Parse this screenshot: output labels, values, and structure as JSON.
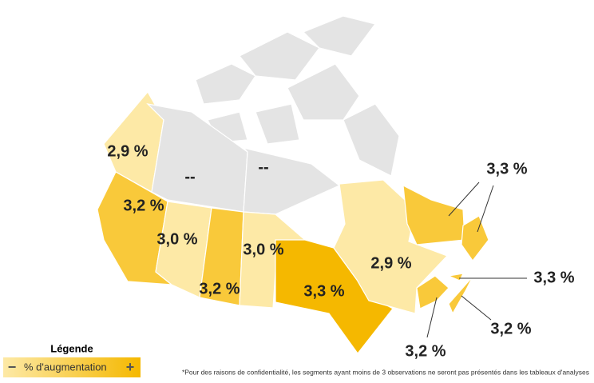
{
  "legend": {
    "title": "Légende",
    "label": "% d'augmentation",
    "minus": "−",
    "plus": "+"
  },
  "regions": [
    {
      "label": "2,9 %",
      "color": "#fde9a6"
    },
    {
      "label": "--",
      "color": "#e4e4e4"
    },
    {
      "label": "--",
      "color": "#e4e4e4"
    },
    {
      "label": "3,2 %",
      "color": "#f9c93a"
    },
    {
      "label": "3,0 %",
      "color": "#fde9a6"
    },
    {
      "label": "3,2 %",
      "color": "#f9c93a"
    },
    {
      "label": "3,0 %",
      "color": "#fde9a6"
    },
    {
      "label": "3,3 %",
      "color": "#f5b800"
    },
    {
      "label": "2,9 %",
      "color": "#fde9a6"
    },
    {
      "label": "3,3 %",
      "color": "#f9c93a"
    },
    {
      "label": "3,3 %",
      "color": "#f9c93a"
    },
    {
      "label": "3,2 %",
      "color": "#f9c93a"
    },
    {
      "label": "3,2 %",
      "color": "#f9c93a"
    }
  ],
  "footnote": "*Pour des raisons de confidentialité, les segments ayant moins de 3 observations ne seront pas présentés dans les tableaux d'analyses"
}
